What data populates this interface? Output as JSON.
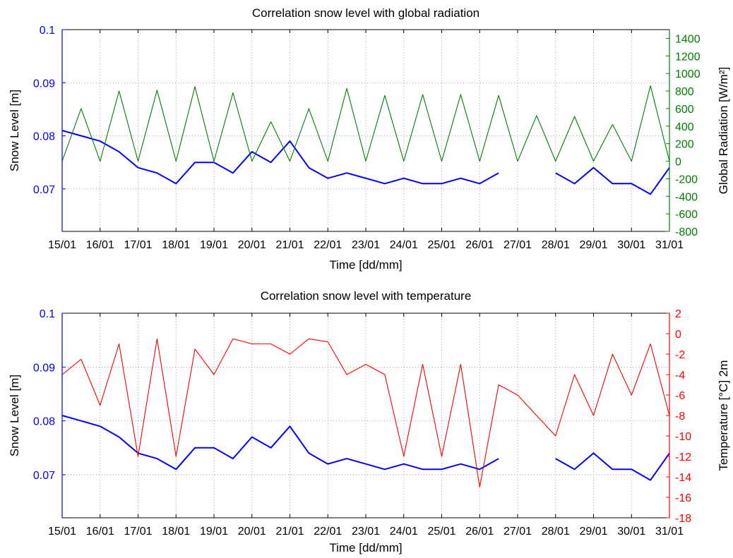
{
  "chart_data": [
    {
      "type": "line",
      "title": "Correlation snow level with global radiation",
      "xlabel": "Time [dd/mm]",
      "ylabel_left": "Snow Level [m]",
      "ylabel_right": "Global Radiation [W/m²]",
      "x_ticks": [
        "15/01",
        "16/01",
        "17/01",
        "18/01",
        "19/01",
        "20/01",
        "21/01",
        "22/01",
        "23/01",
        "24/01",
        "25/01",
        "26/01",
        "27/01",
        "28/01",
        "29/01",
        "30/01",
        "31/01"
      ],
      "y_left_ticks": [
        "0.07",
        "0.08",
        "0.09",
        "0.1"
      ],
      "y_right_ticks": [
        "-800",
        "-600",
        "-400",
        "-200",
        "0",
        "200",
        "400",
        "600",
        "800",
        "1000",
        "1200",
        "1400"
      ],
      "ylim_left": [
        0.062,
        0.1
      ],
      "ylim_right": [
        -800,
        1500
      ],
      "grid": true,
      "colors": {
        "left": "#0000ff",
        "right": "#007f00"
      },
      "series": [
        {
          "name": "Snow Level [m]",
          "axis": "left",
          "color": "#0000ff",
          "x": [
            "15/01 00:00",
            "15/01 12:00",
            "16/01 00:00",
            "16/01 12:00",
            "17/01 00:00",
            "17/01 12:00",
            "18/01 00:00",
            "18/01 12:00",
            "19/01 00:00",
            "19/01 12:00",
            "20/01 00:00",
            "20/01 12:00",
            "21/01 00:00",
            "21/01 12:00",
            "22/01 00:00",
            "22/01 12:00",
            "23/01 00:00",
            "23/01 12:00",
            "24/01 00:00",
            "24/01 12:00",
            "25/01 00:00",
            "25/01 12:00",
            "26/01 00:00",
            "26/01 12:00",
            "27/01 00:00",
            "27/01 12:00",
            "28/01 00:00",
            "28/01 12:00",
            "29/01 00:00",
            "29/01 12:00",
            "30/01 00:00",
            "30/01 12:00",
            "31/01 00:00"
          ],
          "values": [
            0.081,
            0.08,
            0.079,
            0.077,
            0.074,
            0.073,
            0.071,
            0.075,
            0.075,
            0.073,
            0.077,
            0.075,
            0.079,
            0.074,
            0.072,
            0.073,
            0.072,
            0.071,
            0.072,
            0.071,
            0.071,
            0.072,
            0.071,
            0.073,
            null,
            null,
            0.073,
            0.071,
            0.074,
            0.071,
            0.071,
            0.069,
            0.074
          ]
        },
        {
          "name": "Global Radiation [W/m²]",
          "axis": "right",
          "color": "#007f00",
          "x": [
            "15/01 00:00",
            "15/01 12:00",
            "16/01 00:00",
            "16/01 12:00",
            "17/01 00:00",
            "17/01 12:00",
            "18/01 00:00",
            "18/01 12:00",
            "19/01 00:00",
            "19/01 12:00",
            "20/01 00:00",
            "20/01 12:00",
            "21/01 00:00",
            "21/01 12:00",
            "22/01 00:00",
            "22/01 12:00",
            "23/01 00:00",
            "23/01 12:00",
            "24/01 00:00",
            "24/01 12:00",
            "25/01 00:00",
            "25/01 12:00",
            "26/01 00:00",
            "26/01 12:00",
            "27/01 00:00",
            "27/01 12:00",
            "28/01 00:00",
            "28/01 12:00",
            "29/01 00:00",
            "29/01 12:00",
            "30/01 00:00",
            "30/01 12:00",
            "31/01 00:00"
          ],
          "values": [
            0,
            600,
            0,
            800,
            0,
            810,
            0,
            850,
            0,
            780,
            0,
            450,
            0,
            600,
            0,
            830,
            0,
            750,
            0,
            760,
            0,
            760,
            0,
            750,
            0,
            520,
            0,
            510,
            0,
            420,
            0,
            860,
            0
          ]
        }
      ]
    },
    {
      "type": "line",
      "title": "Correlation snow level with temperature",
      "xlabel": "Time [dd/mm]",
      "ylabel_left": "Snow Level [m]",
      "ylabel_right": "Temperature [°C] 2m",
      "x_ticks": [
        "15/01",
        "16/01",
        "17/01",
        "18/01",
        "19/01",
        "20/01",
        "21/01",
        "22/01",
        "23/01",
        "24/01",
        "25/01",
        "26/01",
        "27/01",
        "28/01",
        "29/01",
        "30/01",
        "31/01"
      ],
      "y_left_ticks": [
        "0.07",
        "0.08",
        "0.09",
        "0.1"
      ],
      "y_right_ticks": [
        "-18",
        "-16",
        "-14",
        "-12",
        "-10",
        "-8",
        "-6",
        "-4",
        "-2",
        "0",
        "2"
      ],
      "ylim_left": [
        0.062,
        0.1
      ],
      "ylim_right": [
        -18,
        2
      ],
      "grid": true,
      "colors": {
        "left": "#0000ff",
        "right": "#ff0000"
      },
      "series": [
        {
          "name": "Snow Level [m]",
          "axis": "left",
          "color": "#0000ff",
          "x": [
            "15/01 00:00",
            "15/01 12:00",
            "16/01 00:00",
            "16/01 12:00",
            "17/01 00:00",
            "17/01 12:00",
            "18/01 00:00",
            "18/01 12:00",
            "19/01 00:00",
            "19/01 12:00",
            "20/01 00:00",
            "20/01 12:00",
            "21/01 00:00",
            "21/01 12:00",
            "22/01 00:00",
            "22/01 12:00",
            "23/01 00:00",
            "23/01 12:00",
            "24/01 00:00",
            "24/01 12:00",
            "25/01 00:00",
            "25/01 12:00",
            "26/01 00:00",
            "26/01 12:00",
            "27/01 00:00",
            "27/01 12:00",
            "28/01 00:00",
            "28/01 12:00",
            "29/01 00:00",
            "29/01 12:00",
            "30/01 00:00",
            "30/01 12:00",
            "31/01 00:00"
          ],
          "values": [
            0.081,
            0.08,
            0.079,
            0.077,
            0.074,
            0.073,
            0.071,
            0.075,
            0.075,
            0.073,
            0.077,
            0.075,
            0.079,
            0.074,
            0.072,
            0.073,
            0.072,
            0.071,
            0.072,
            0.071,
            0.071,
            0.072,
            0.071,
            0.073,
            null,
            null,
            0.073,
            0.071,
            0.074,
            0.071,
            0.071,
            0.069,
            0.074
          ]
        },
        {
          "name": "Temperature [°C] 2m",
          "axis": "right",
          "color": "#ff0000",
          "x": [
            "15/01 00:00",
            "15/01 12:00",
            "16/01 00:00",
            "16/01 12:00",
            "17/01 00:00",
            "17/01 12:00",
            "18/01 00:00",
            "18/01 12:00",
            "19/01 00:00",
            "19/01 12:00",
            "20/01 00:00",
            "20/01 12:00",
            "21/01 00:00",
            "21/01 12:00",
            "22/01 00:00",
            "22/01 12:00",
            "23/01 00:00",
            "23/01 12:00",
            "24/01 00:00",
            "24/01 12:00",
            "25/01 00:00",
            "25/01 12:00",
            "26/01 00:00",
            "26/01 12:00",
            "27/01 00:00",
            "27/01 12:00",
            "28/01 00:00",
            "28/01 12:00",
            "29/01 00:00",
            "29/01 12:00",
            "30/01 00:00",
            "30/01 12:00",
            "31/01 00:00"
          ],
          "values": [
            -4,
            -2.5,
            -7,
            -1,
            -12,
            -0.5,
            -12,
            -1.5,
            -4,
            -0.5,
            -1,
            -1,
            -2,
            -0.5,
            -0.8,
            -4,
            -3,
            -4,
            -12,
            -3,
            -12,
            -3,
            -15,
            -5,
            -6,
            -8,
            -10,
            -4,
            -8,
            -2,
            -6,
            -1,
            -8
          ]
        }
      ]
    }
  ]
}
